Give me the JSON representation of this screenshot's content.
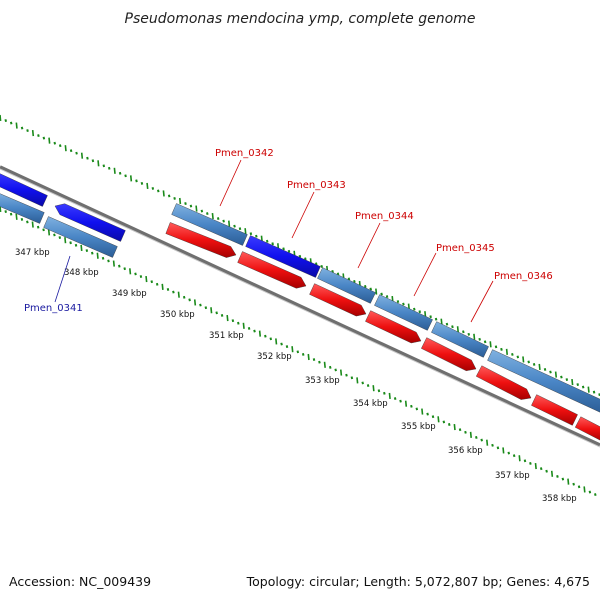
{
  "title": "Pseudomonas mendocina ymp, complete genome",
  "accession": "Accession: NC_009439",
  "summary": "Topology: circular; Length: 5,072,807 bp; Genes: 4,675",
  "kbp_labels": [
    "347 kbp",
    "348 kbp",
    "349 kbp",
    "350 kbp",
    "351 kbp",
    "352 kbp",
    "353 kbp",
    "354 kbp",
    "355 kbp",
    "356 kbp",
    "357 kbp",
    "358 kbp"
  ],
  "gene_labels": [
    "Pmen_0341",
    "Pmen_0342",
    "Pmen_0343",
    "Pmen_0344",
    "Pmen_0345",
    "Pmen_0346"
  ],
  "colors": {
    "forward_gene": "#4a86c6",
    "highlight_gene": "#1010ee",
    "reverse_gene": "#ee1010",
    "backbone": "#888888",
    "ticks": "#1a8a1a",
    "label_red": "#cc0000",
    "label_blue": "#1a1aa0"
  }
}
